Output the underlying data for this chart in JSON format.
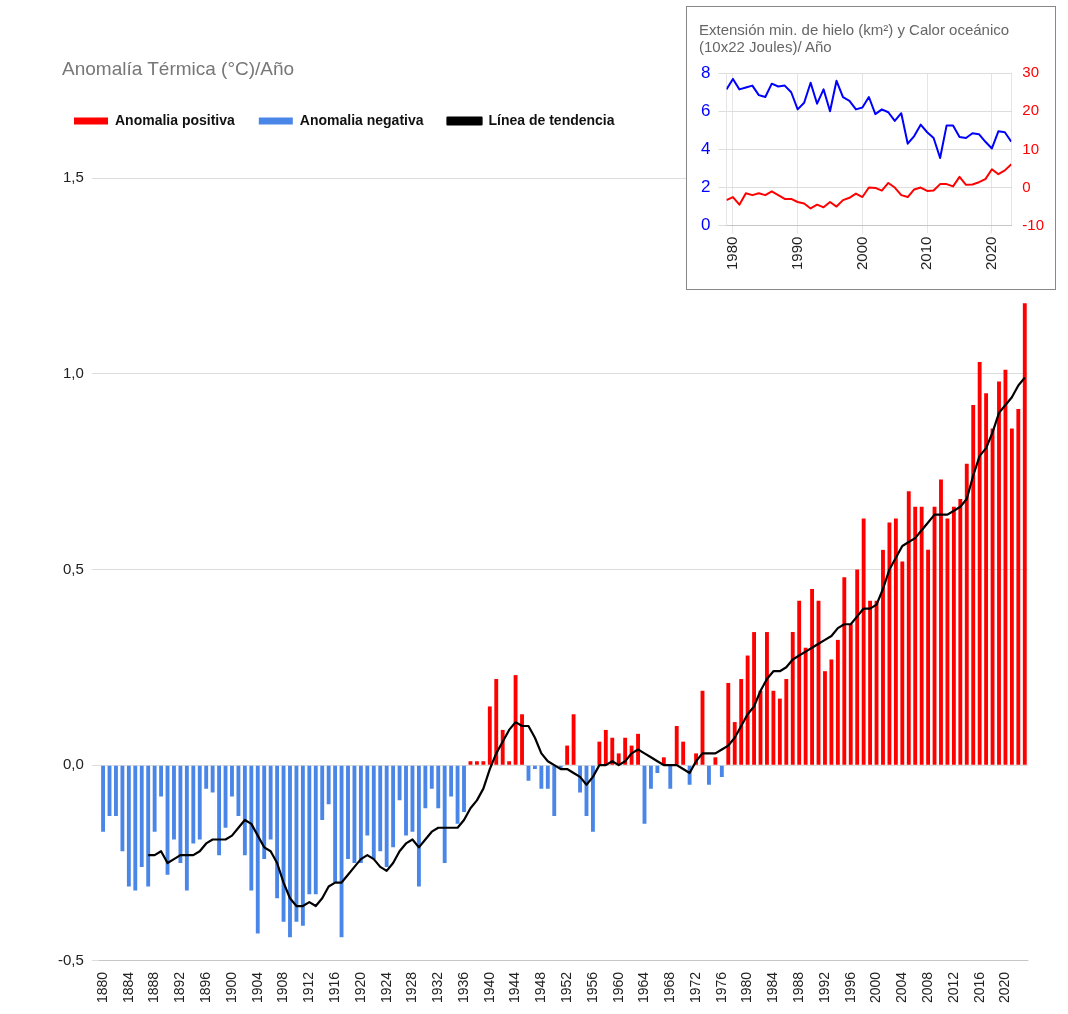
{
  "chart_data": [
    {
      "type": "bar",
      "title": "Anomalía Térmica (°C)/Año",
      "stacked": true,
      "legend": "top",
      "grid": "y",
      "categories": [
        "1880",
        null,
        null,
        null,
        "1884",
        null,
        null,
        null,
        "1888",
        null,
        null,
        null,
        "1892",
        null,
        null,
        null,
        "1896",
        null,
        null,
        null,
        "1900",
        null,
        null,
        null,
        "1904",
        null,
        null,
        null,
        "1908",
        null,
        null,
        null,
        "1912",
        null,
        null,
        null,
        "1916",
        null,
        null,
        null,
        "1920",
        null,
        null,
        null,
        "1924",
        null,
        null,
        null,
        "1928",
        null,
        null,
        null,
        "1932",
        null,
        null,
        null,
        "1936",
        null,
        null,
        null,
        "1940",
        null,
        null,
        null,
        "1944",
        null,
        null,
        null,
        "1948",
        null,
        null,
        null,
        "1952",
        null,
        null,
        null,
        "1956",
        null,
        null,
        null,
        "1960",
        null,
        null,
        null,
        "1964",
        null,
        null,
        null,
        "1968",
        null,
        null,
        null,
        "1972",
        null,
        null,
        null,
        "1976",
        null,
        null,
        null,
        "1980",
        null,
        null,
        null,
        "1984",
        null,
        null,
        null,
        "1988",
        null,
        null,
        null,
        "1992",
        null,
        null,
        null,
        "1996",
        null,
        null,
        null,
        "2000",
        null,
        null,
        null,
        "2004",
        null,
        null,
        null,
        "2008",
        null,
        null,
        null,
        "2012",
        null,
        null,
        null,
        "2016",
        null,
        null,
        null,
        "2020",
        null,
        null,
        null
      ],
      "ylim": [
        -0.5,
        1.5
      ],
      "yticks": [
        {
          "value": -0.5,
          "label": "-0,5"
        },
        {
          "value": 0,
          "label": "0,0"
        },
        {
          "value": 0.5,
          "label": "0,5"
        },
        {
          "value": 1,
          "label": "1,0"
        },
        {
          "value": 1.5,
          "label": "1,5"
        }
      ],
      "series": [
        {
          "name": "Anomalia positiva",
          "color": "#ff0000",
          "values": [
            null,
            null,
            null,
            null,
            null,
            null,
            null,
            null,
            null,
            null,
            null,
            null,
            null,
            null,
            null,
            null,
            null,
            null,
            null,
            null,
            null,
            null,
            null,
            null,
            null,
            null,
            null,
            null,
            null,
            null,
            null,
            null,
            null,
            null,
            null,
            null,
            null,
            null,
            null,
            null,
            null,
            null,
            null,
            null,
            null,
            null,
            null,
            null,
            null,
            null,
            null,
            null,
            null,
            null,
            null,
            null,
            null,
            0.01,
            0.01,
            0.01,
            0.15,
            0.22,
            0.09,
            0.01,
            0.23,
            0.13,
            null,
            null,
            null,
            null,
            null,
            null,
            0.05,
            0.13,
            null,
            null,
            null,
            0.06,
            0.09,
            0.07,
            0.03,
            0.07,
            0.05,
            0.08,
            null,
            null,
            null,
            0.02,
            null,
            0.1,
            0.06,
            null,
            0.03,
            0.19,
            null,
            0.02,
            null,
            0.21,
            0.11,
            0.22,
            0.28,
            0.34,
            0.19,
            0.34,
            0.19,
            0.17,
            0.22,
            0.34,
            0.42,
            0.3,
            0.45,
            0.42,
            0.24,
            0.27,
            0.32,
            0.48,
            0.36,
            0.5,
            0.63,
            0.42,
            0.42,
            0.55,
            0.62,
            0.63,
            0.52,
            0.7,
            0.66,
            0.66,
            0.55,
            0.66,
            0.73,
            0.63,
            0.66,
            0.68,
            0.77,
            0.92,
            1.03,
            0.95,
            0.86,
            0.98,
            1.01,
            0.86,
            0.91,
            1.18
          ]
        },
        {
          "name": "Anomalia negativa",
          "color": "#4a86e8",
          "values": [
            -0.17,
            -0.13,
            -0.13,
            -0.22,
            -0.31,
            -0.32,
            -0.26,
            -0.31,
            -0.17,
            -0.08,
            -0.28,
            -0.19,
            -0.25,
            -0.32,
            -0.2,
            -0.19,
            -0.06,
            -0.07,
            -0.23,
            -0.16,
            -0.08,
            -0.13,
            -0.23,
            -0.32,
            -0.43,
            -0.24,
            -0.19,
            -0.34,
            -0.4,
            -0.44,
            -0.4,
            -0.41,
            -0.33,
            -0.33,
            -0.14,
            -0.1,
            -0.3,
            -0.44,
            -0.24,
            -0.25,
            -0.25,
            -0.18,
            -0.24,
            -0.22,
            -0.26,
            -0.21,
            -0.09,
            -0.18,
            -0.17,
            -0.31,
            -0.11,
            -0.06,
            -0.11,
            -0.25,
            -0.08,
            -0.15,
            -0.12,
            null,
            null,
            null,
            null,
            null,
            null,
            null,
            null,
            null,
            -0.04,
            -0.01,
            -0.06,
            -0.06,
            -0.13,
            -0.01,
            null,
            null,
            -0.07,
            -0.13,
            -0.17,
            null,
            null,
            null,
            null,
            null,
            null,
            null,
            -0.15,
            -0.06,
            -0.02,
            null,
            -0.06,
            null,
            null,
            -0.05,
            null,
            null,
            -0.05,
            null,
            -0.03,
            null,
            null,
            null,
            null,
            null,
            null,
            null,
            null,
            null,
            null,
            null,
            null,
            null,
            null,
            null,
            null,
            null,
            null,
            null,
            null,
            null,
            null,
            null,
            null,
            null,
            null,
            null,
            null,
            null,
            null,
            null,
            null,
            null,
            null,
            null,
            null,
            null,
            null,
            null,
            null,
            null,
            null,
            null,
            null,
            null,
            null,
            null
          ]
        },
        {
          "name": "Línea de tendencia",
          "type": "line",
          "color": "#000000",
          "values": [
            null,
            null,
            null,
            null,
            null,
            null,
            null,
            -0.23,
            -0.23,
            -0.22,
            -0.25,
            -0.24,
            -0.23,
            -0.23,
            -0.23,
            -0.22,
            -0.2,
            -0.19,
            -0.19,
            -0.19,
            -0.18,
            -0.16,
            -0.14,
            -0.15,
            -0.18,
            -0.21,
            -0.22,
            -0.25,
            -0.3,
            -0.34,
            -0.36,
            -0.36,
            -0.35,
            -0.36,
            -0.34,
            -0.31,
            -0.3,
            -0.3,
            -0.28,
            -0.26,
            -0.24,
            -0.23,
            -0.24,
            -0.26,
            -0.27,
            -0.25,
            -0.22,
            -0.2,
            -0.19,
            -0.21,
            -0.19,
            -0.17,
            -0.16,
            -0.16,
            -0.16,
            -0.16,
            -0.14,
            -0.11,
            -0.09,
            -0.06,
            -0.01,
            0.03,
            0.06,
            0.09,
            0.11,
            0.1,
            0.1,
            0.07,
            0.03,
            0.01,
            0.0,
            -0.01,
            -0.01,
            -0.02,
            -0.03,
            -0.05,
            -0.03,
            0.0,
            0.0,
            0.01,
            0.0,
            0.01,
            0.03,
            0.04,
            0.03,
            0.02,
            0.01,
            0.0,
            0.0,
            0.0,
            -0.01,
            -0.02,
            0.01,
            0.03,
            0.03,
            0.03,
            0.04,
            0.05,
            0.07,
            0.1,
            0.13,
            0.15,
            0.19,
            0.22,
            0.24,
            0.24,
            0.25,
            0.27,
            0.28,
            0.29,
            0.3,
            0.31,
            0.32,
            0.33,
            0.35,
            0.36,
            0.36,
            0.38,
            0.4,
            0.4,
            0.41,
            0.45,
            0.5,
            0.53,
            0.56,
            0.57,
            0.58,
            0.6,
            0.62,
            0.64,
            0.64,
            0.64,
            0.65,
            0.66,
            0.68,
            0.74,
            0.79,
            0.81,
            0.85,
            0.9,
            0.92,
            0.94,
            0.97,
            0.99
          ]
        }
      ]
    },
    {
      "type": "line",
      "title": "Extensión min. de hielo (km²) y Calor oceánico (10x22 Joules)/ Año",
      "grid": true,
      "x": [
        1979,
        1980,
        1981,
        1982,
        1983,
        1984,
        1985,
        1986,
        1987,
        1988,
        1989,
        1990,
        1991,
        1992,
        1993,
        1994,
        1995,
        1996,
        1997,
        1998,
        1999,
        2000,
        2001,
        2002,
        2003,
        2004,
        2005,
        2006,
        2007,
        2008,
        2009,
        2010,
        2011,
        2012,
        2013,
        2014,
        2015,
        2016,
        2017,
        2018,
        2019,
        2020,
        2021,
        2022,
        2023
      ],
      "xlim": [
        1979,
        2023
      ],
      "xticks": [
        1980,
        1990,
        2000,
        2010,
        2020
      ],
      "ylim": [
        0,
        8
      ],
      "yticks": [
        0,
        2,
        4,
        6,
        8
      ],
      "y2lim": [
        -10,
        30
      ],
      "y2ticks": [
        -10,
        0,
        10,
        20,
        30
      ],
      "series": [
        {
          "color": "#0000ff",
          "values": [
            7.15,
            7.7,
            7.15,
            7.25,
            7.35,
            6.85,
            6.75,
            7.45,
            7.3,
            7.35,
            7.0,
            6.1,
            6.45,
            7.5,
            6.4,
            7.15,
            6.0,
            7.6,
            6.75,
            6.55,
            6.1,
            6.2,
            6.75,
            5.85,
            6.1,
            5.95,
            5.5,
            5.9,
            4.3,
            4.7,
            5.3,
            4.9,
            4.6,
            3.55,
            5.25,
            5.25,
            4.65,
            4.6,
            4.85,
            4.8,
            4.4,
            4.05,
            4.95,
            4.9,
            4.4
          ]
        },
        {
          "color": "#ff0000",
          "axis": "y2",
          "values": [
            -3.3,
            -2.5,
            -4.5,
            -1.5,
            -2,
            -1.5,
            -2,
            -1,
            -2,
            -3,
            -3,
            -3.8,
            -4.2,
            -5.5,
            -4.5,
            -5.2,
            -3.8,
            -5,
            -3.3,
            -2.7,
            -1.6,
            -2.5,
            0,
            -0.1,
            -0.8,
            1.2,
            0,
            -2,
            -2.5,
            -0.5,
            0,
            -0.9,
            -0.8,
            0.9,
            0.9,
            0.3,
            2.8,
            0.7,
            0.8,
            1.4,
            2.2,
            4.8,
            3.5,
            4.5,
            6.1
          ]
        }
      ]
    }
  ]
}
